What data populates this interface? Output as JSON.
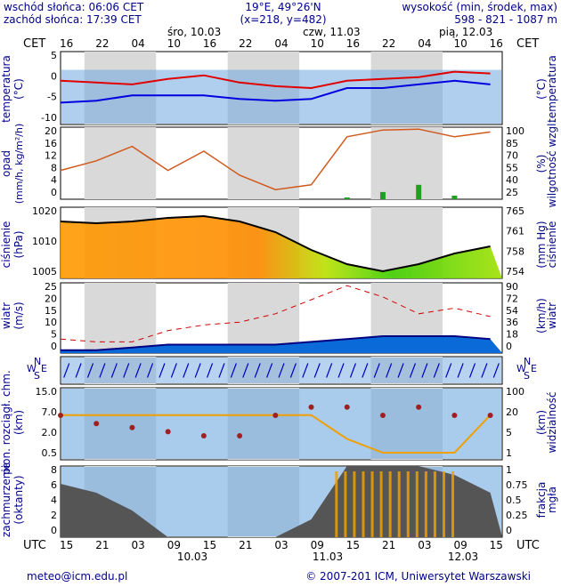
{
  "header": {
    "sunrise": "wschód słońca: 06:06 CET",
    "sunset": "zachód słońca: 17:39 CET",
    "coords": "19°E, 49°26'N",
    "grid": "(x=218,  y=482)",
    "elev_title": "wysokość (min, środek, max)",
    "elev_values": "598 - 821 - 1087 m"
  },
  "top_axis": {
    "tz": "CET",
    "hours": [
      "16",
      "22",
      "04",
      "10",
      "16",
      "22",
      "04",
      "10",
      "16",
      "22",
      "04",
      "10",
      "16"
    ],
    "days": [
      "śro, 10.03",
      "czw, 11.03",
      "pią, 12.03"
    ]
  },
  "bottom_axis": {
    "tz": "UTC",
    "hours": [
      "15",
      "21",
      "03",
      "09",
      "15",
      "21",
      "03",
      "09",
      "15",
      "21",
      "03",
      "09",
      "15"
    ],
    "dates": [
      "10.03",
      "11.03",
      "12.03"
    ]
  },
  "panels": {
    "temperature": {
      "left_label": "temperatura",
      "left_unit": "(°C)",
      "right_label": "temperatura",
      "right_unit": "(°C)",
      "ticks": [
        "5",
        "0",
        "-5",
        "-10"
      ]
    },
    "precipitation": {
      "left_label": "opad",
      "left_unit": "(mm/h, kg/m²/h)",
      "right_label": "wilgotność wzgl.",
      "right_unit": "(%)",
      "left_ticks": [
        "20",
        "16",
        "12",
        "8",
        "4",
        "0"
      ],
      "right_ticks": [
        "100",
        "85",
        "70",
        "55",
        "40",
        "25"
      ]
    },
    "pressure": {
      "left_label": "ciśnienie",
      "left_unit": "(hPa)",
      "right_label": "ciśnienie",
      "right_unit": "(mm Hg)",
      "left_ticks": [
        "1020",
        "1010",
        "1005"
      ],
      "right_ticks": [
        "765",
        "761",
        "758",
        "754"
      ]
    },
    "wind": {
      "left_label": "wiatr",
      "left_unit": "(m/s)",
      "right_label": "wiatr",
      "right_unit": "(km/h)",
      "left_ticks": [
        "25",
        "20",
        "15",
        "10",
        "5",
        "0"
      ],
      "right_ticks": [
        "90",
        "72",
        "54",
        "36",
        "18",
        "0"
      ]
    },
    "direction": {
      "compass_n": "N",
      "compass_w": "W",
      "compass_e": "E",
      "compass_s": "S"
    },
    "visibility": {
      "left_label": "pion. rozciągł. chm.",
      "left_unit": "(km)",
      "right_label": "widzialność",
      "right_unit": "(km)",
      "left_ticks": [
        "15.0",
        "7.0",
        "2.0",
        "0.5"
      ],
      "right_ticks": [
        "100",
        "20",
        "5",
        "1"
      ]
    },
    "cloud": {
      "left_label": "zachmurzenie",
      "left_unit": "(oktanty)",
      "right_label": "frakcja",
      "right_unit": "mgła",
      "left_ticks": [
        "8",
        "6",
        "4",
        "2",
        "0"
      ],
      "right_ticks": [
        "1",
        "0.75",
        "0.5",
        "0.25",
        "0"
      ]
    }
  },
  "footer": {
    "email": "meteo@icm.edu.pl",
    "copyright": "© 2007-201 ICM, Uniwersytet Warszawski"
  },
  "colors": {
    "panel_blue": "#6fa8e0",
    "night": "#d9d9d9",
    "temp_red": "#e00000",
    "dew_blue": "#0000e0",
    "rh_orange": "#d05a1e",
    "fog_orange": "#f0a000",
    "axis_text": "#00008b"
  },
  "chart_data": [
    {
      "type": "line",
      "title": "temperatura",
      "ylabel": "(°C)",
      "ylim": [
        -13,
        7
      ],
      "x_hours": [
        0,
        6,
        12,
        18,
        24,
        30,
        36,
        42,
        48,
        54,
        60,
        66,
        72
      ],
      "series": [
        {
          "name": "temperatura",
          "values": [
            -1,
            -1.5,
            -2,
            -0.5,
            0.5,
            -1.5,
            -2.5,
            -3,
            -1,
            -0.5,
            0,
            1.5,
            1
          ]
        },
        {
          "name": "punkt rosy",
          "values": [
            -7,
            -6.5,
            -5,
            -5,
            -5,
            -6,
            -6.5,
            -6,
            -3,
            -3,
            -2,
            -1,
            -2
          ]
        }
      ]
    },
    {
      "type": "line",
      "title": "opad / wilgotność wzgl.",
      "x_hours": [
        0,
        6,
        12,
        18,
        24,
        30,
        36,
        42,
        48,
        54,
        60,
        66,
        72
      ],
      "series": [
        {
          "name": "wilgotność wzgl.",
          "values": [
            55,
            65,
            80,
            55,
            75,
            50,
            35,
            40,
            90,
            97,
            98,
            90,
            95
          ]
        },
        {
          "name": "opad",
          "values": [
            0,
            0,
            0,
            0,
            0,
            0,
            0,
            0,
            0.5,
            2,
            4,
            1,
            0
          ]
        }
      ]
    },
    {
      "type": "area",
      "title": "ciśnienie",
      "ylabel": "(hPa)",
      "ylim": [
        1005,
        1025
      ],
      "x_hours": [
        0,
        6,
        12,
        18,
        24,
        30,
        36,
        42,
        48,
        54,
        60,
        66,
        72
      ],
      "values": [
        1021,
        1020.5,
        1021,
        1022,
        1022.5,
        1021,
        1018,
        1013,
        1009,
        1007,
        1009,
        1012,
        1014
      ]
    },
    {
      "type": "line",
      "title": "wiatr",
      "ylabel": "(m/s)",
      "ylim": [
        0,
        25
      ],
      "x_hours": [
        0,
        6,
        12,
        18,
        24,
        30,
        36,
        42,
        48,
        54,
        60,
        66,
        72
      ],
      "series": [
        {
          "name": "porywy",
          "values": [
            5,
            4,
            4,
            8,
            10,
            11,
            14,
            19,
            24,
            20,
            14,
            16,
            13
          ]
        },
        {
          "name": "średnia",
          "values": [
            1,
            1,
            2,
            3,
            3,
            3,
            3,
            4,
            5,
            6,
            6,
            6,
            5
          ]
        }
      ]
    },
    {
      "type": "scatter",
      "title": "widzialność / pion. rozciągł. chm.",
      "ylabel": "(km)",
      "x_hours": [
        0,
        6,
        12,
        18,
        24,
        30,
        36,
        42,
        48,
        54,
        60,
        66,
        72
      ],
      "series": [
        {
          "name": "widzialność",
          "values": [
            20,
            20,
            20,
            20,
            20,
            20,
            20,
            20,
            3,
            1,
            1,
            1,
            20
          ]
        },
        {
          "name": "pion. rozciągł. chm.",
          "values": [
            10,
            8,
            7,
            6,
            5,
            5,
            10,
            12,
            12,
            10,
            12,
            10,
            10
          ]
        }
      ]
    },
    {
      "type": "area",
      "title": "zachmurzenie",
      "ylabel": "(oktanty)",
      "ylim": [
        0,
        8
      ],
      "x_hours": [
        0,
        6,
        12,
        18,
        24,
        30,
        36,
        42,
        48,
        54,
        60,
        66,
        72
      ],
      "values": [
        6,
        5,
        3,
        0,
        0,
        0,
        0,
        2,
        8,
        8,
        8,
        7,
        5
      ]
    }
  ]
}
